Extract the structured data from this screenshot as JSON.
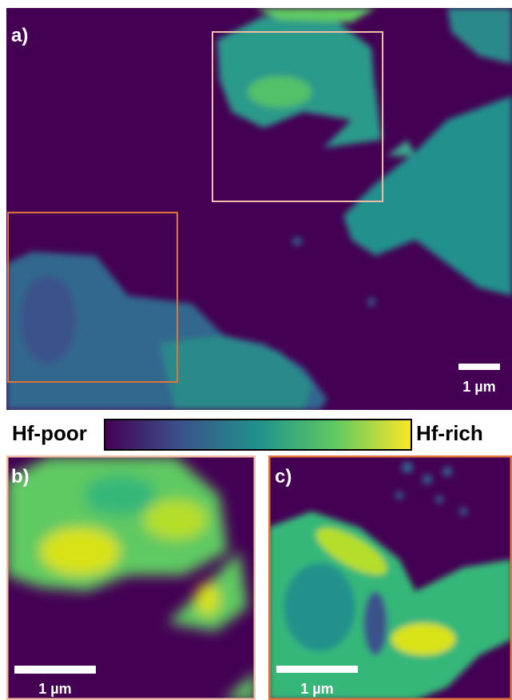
{
  "panels": [
    {
      "label": "a)",
      "scale_bar": "1 µm"
    },
    {
      "label": "b)",
      "scale_bar": "1 µm"
    },
    {
      "label": "c)",
      "scale_bar": "1 µm"
    }
  ],
  "colorbar": {
    "low_label": "Hf-poor",
    "high_label": "Hf-rich"
  }
}
